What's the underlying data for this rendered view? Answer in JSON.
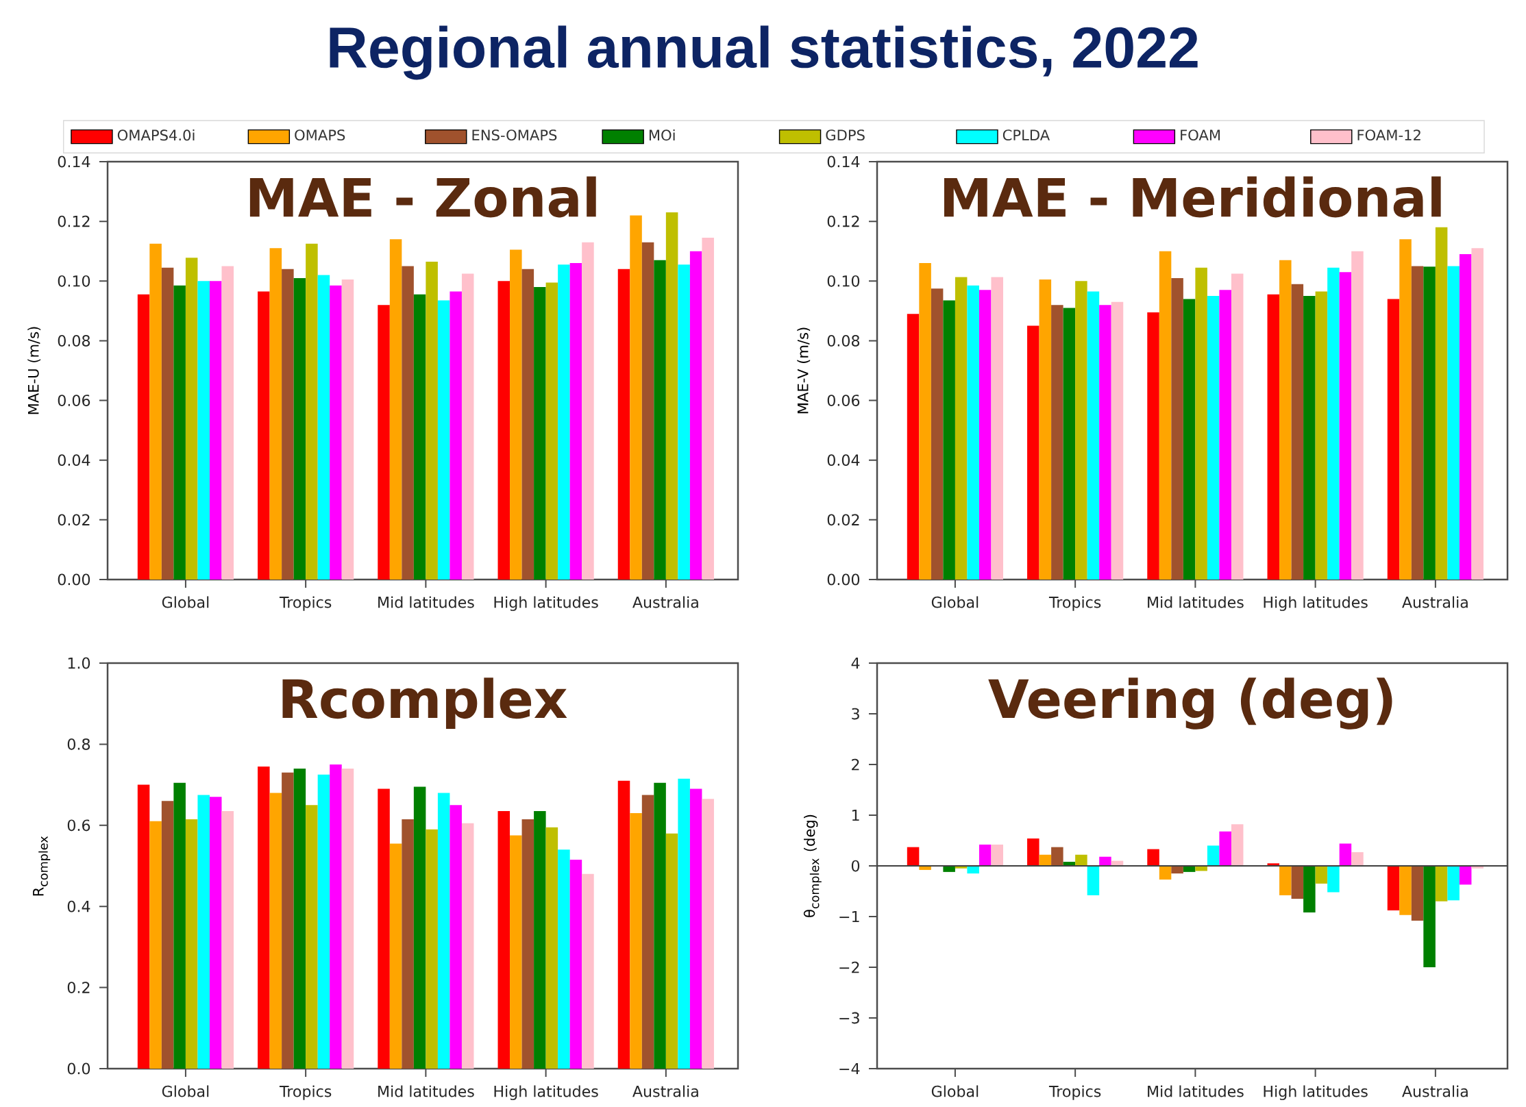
{
  "chart_data": [
    {
      "type": "bar",
      "title": "MAE - Zonal",
      "ylabel": "MAE-U (m/s)",
      "annotations": [
        "Regional annual statistics, 2022"
      ],
      "legend": "top",
      "categories": [
        "Global",
        "Tropics",
        "Mid latitudes",
        "High latitudes",
        "Australia"
      ],
      "ylim": [
        0,
        0.14
      ],
      "yticks": [
        {
          "value": 0,
          "label": "0.00"
        },
        {
          "value": 0.02,
          "label": "0.02"
        },
        {
          "value": 0.04,
          "label": "0.04"
        },
        {
          "value": 0.06,
          "label": "0.06"
        },
        {
          "value": 0.08,
          "label": "0.08"
        },
        {
          "value": 0.1,
          "label": "0.10"
        },
        {
          "value": 0.12,
          "label": "0.12"
        },
        {
          "value": 0.14,
          "label": "0.14"
        }
      ],
      "series": [
        {
          "name": "OMAPS4.0i",
          "color": "#ff0000",
          "values": [
            0.0955,
            0.0965,
            0.092,
            0.1,
            0.104
          ]
        },
        {
          "name": "OMAPS",
          "color": "#ffa500",
          "values": [
            0.1125,
            0.111,
            0.114,
            0.1105,
            0.122
          ]
        },
        {
          "name": "ENS-OMAPS",
          "color": "#a0522d",
          "values": [
            0.1045,
            0.104,
            0.105,
            0.104,
            0.113
          ]
        },
        {
          "name": "MOi",
          "color": "#008000",
          "values": [
            0.0985,
            0.101,
            0.0955,
            0.098,
            0.107
          ]
        },
        {
          "name": "GDPS",
          "color": "#bfbf00",
          "values": [
            0.1078,
            0.1125,
            0.1065,
            0.0995,
            0.123
          ]
        },
        {
          "name": "CPLDA",
          "color": "#00ffff",
          "values": [
            0.1,
            0.102,
            0.0935,
            0.1055,
            0.1055
          ]
        },
        {
          "name": "FOAM",
          "color": "#ff00ff",
          "values": [
            0.1,
            0.0985,
            0.0965,
            0.106,
            0.11
          ]
        },
        {
          "name": "FOAM-12",
          "color": "#ffc0cb",
          "values": [
            0.105,
            0.1005,
            0.1025,
            0.113,
            0.1145
          ]
        }
      ]
    },
    {
      "type": "bar",
      "title": "MAE - Meridional",
      "ylabel": "MAE-V (m/s)",
      "categories": [
        "Global",
        "Tropics",
        "Mid latitudes",
        "High latitudes",
        "Australia"
      ],
      "ylim": [
        0,
        0.14
      ],
      "yticks": [
        {
          "value": 0,
          "label": "0.00"
        },
        {
          "value": 0.02,
          "label": "0.02"
        },
        {
          "value": 0.04,
          "label": "0.04"
        },
        {
          "value": 0.06,
          "label": "0.06"
        },
        {
          "value": 0.08,
          "label": "0.08"
        },
        {
          "value": 0.1,
          "label": "0.10"
        },
        {
          "value": 0.12,
          "label": "0.12"
        },
        {
          "value": 0.14,
          "label": "0.14"
        }
      ],
      "series": [
        {
          "color": "#ff0000",
          "values": [
            0.089,
            0.085,
            0.0895,
            0.0955,
            0.094
          ]
        },
        {
          "color": "#ffa500",
          "values": [
            0.106,
            0.1005,
            0.11,
            0.107,
            0.114
          ]
        },
        {
          "color": "#a0522d",
          "values": [
            0.0975,
            0.092,
            0.101,
            0.099,
            0.105
          ]
        },
        {
          "color": "#008000",
          "values": [
            0.0935,
            0.091,
            0.094,
            0.095,
            0.1048
          ]
        },
        {
          "color": "#bfbf00",
          "values": [
            0.1013,
            0.1,
            0.1045,
            0.0965,
            0.118
          ]
        },
        {
          "color": "#00ffff",
          "values": [
            0.0985,
            0.0965,
            0.095,
            0.1045,
            0.105
          ]
        },
        {
          "color": "#ff00ff",
          "values": [
            0.097,
            0.092,
            0.097,
            0.103,
            0.109
          ]
        },
        {
          "color": "#ffc0cb",
          "values": [
            0.1013,
            0.093,
            0.1025,
            0.11,
            0.111
          ]
        }
      ]
    },
    {
      "type": "bar",
      "title": "Rcomplex",
      "ylabel": "R$_{complex}$",
      "categories": [
        "Global",
        "Tropics",
        "Mid latitudes",
        "High latitudes",
        "Australia"
      ],
      "ylim": [
        0,
        1
      ],
      "yticks": [
        {
          "value": 0,
          "label": "0.0"
        },
        {
          "value": 0.2,
          "label": "0.2"
        },
        {
          "value": 0.4,
          "label": "0.4"
        },
        {
          "value": 0.6,
          "label": "0.6"
        },
        {
          "value": 0.8,
          "label": "0.8"
        },
        {
          "value": 1,
          "label": "1.0"
        }
      ],
      "series": [
        {
          "color": "#ff0000",
          "values": [
            0.7,
            0.745,
            0.69,
            0.635,
            0.71
          ]
        },
        {
          "color": "#ffa500",
          "values": [
            0.61,
            0.68,
            0.555,
            0.575,
            0.63
          ]
        },
        {
          "color": "#a0522d",
          "values": [
            0.66,
            0.73,
            0.615,
            0.615,
            0.675
          ]
        },
        {
          "color": "#008000",
          "values": [
            0.705,
            0.74,
            0.695,
            0.635,
            0.705
          ]
        },
        {
          "color": "#bfbf00",
          "values": [
            0.615,
            0.65,
            0.59,
            0.595,
            0.58
          ]
        },
        {
          "color": "#00ffff",
          "values": [
            0.675,
            0.725,
            0.68,
            0.54,
            0.715
          ]
        },
        {
          "color": "#ff00ff",
          "values": [
            0.67,
            0.75,
            0.65,
            0.515,
            0.69
          ]
        },
        {
          "color": "#ffc0cb",
          "values": [
            0.635,
            0.74,
            0.605,
            0.48,
            0.665
          ]
        }
      ]
    },
    {
      "type": "bar",
      "title": "Veering (deg)",
      "ylabel": "θ$_{complex}$ (deg)",
      "categories": [
        "Global",
        "Tropics",
        "Mid latitudes",
        "High latitudes",
        "Australia"
      ],
      "ylim": [
        -4,
        4
      ],
      "yticks": [
        {
          "value": -4,
          "label": "−4"
        },
        {
          "value": -3,
          "label": "−3"
        },
        {
          "value": -2,
          "label": "−2"
        },
        {
          "value": -1,
          "label": "−1"
        },
        0,
        1,
        2,
        3,
        4
      ],
      "ref_lines": [
        {
          "axis": "y",
          "value": 0,
          "color": "#404040"
        }
      ],
      "series": [
        {
          "color": "#ff0000",
          "values": [
            0.37,
            0.54,
            0.33,
            0.05,
            -0.88
          ]
        },
        {
          "color": "#ffa500",
          "values": [
            -0.08,
            0.22,
            -0.27,
            -0.58,
            -0.97
          ]
        },
        {
          "color": "#a0522d",
          "values": [
            0,
            0.37,
            -0.15,
            -0.65,
            -1.08
          ]
        },
        {
          "color": "#008000",
          "values": [
            -0.12,
            0.08,
            -0.12,
            -0.92,
            -2
          ]
        },
        {
          "color": "#bfbf00",
          "values": [
            -0.05,
            0.22,
            -0.1,
            -0.35,
            -0.7
          ]
        },
        {
          "color": "#00ffff",
          "values": [
            -0.15,
            -0.58,
            0.4,
            -0.52,
            -0.68
          ]
        },
        {
          "color": "#ff00ff",
          "values": [
            0.42,
            0.18,
            0.68,
            0.44,
            -0.37
          ]
        },
        {
          "color": "#ffc0cb",
          "values": [
            0.42,
            0.1,
            0.82,
            0.27,
            -0.05
          ]
        }
      ]
    }
  ]
}
